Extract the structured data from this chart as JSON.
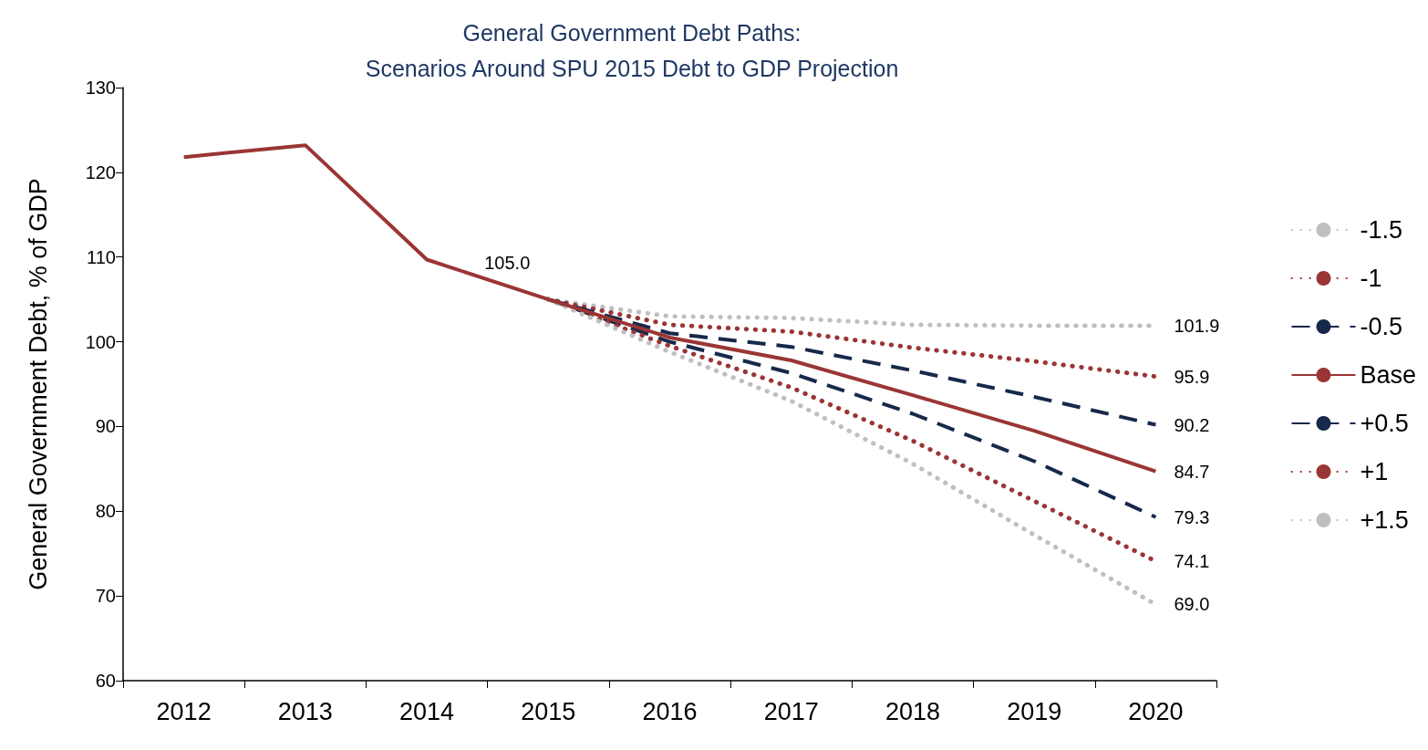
{
  "chart_data": {
    "type": "line",
    "title": "General Government Debt Paths:",
    "subtitle": "Scenarios Around SPU 2015 Debt to GDP Projection",
    "ylabel": "General Government Debt, % of GDP",
    "categories": [
      "2012",
      "2013",
      "2014",
      "2015",
      "2016",
      "2017",
      "2018",
      "2019",
      "2020"
    ],
    "series": [
      {
        "name": "-1.5",
        "color": "#bfbfbf",
        "line_style": "dotted",
        "values": [
          null,
          null,
          null,
          105.0,
          103.0,
          102.8,
          102.0,
          101.9,
          101.9
        ],
        "value_labels": [
          null,
          null,
          null,
          null,
          null,
          null,
          null,
          null,
          "101.9"
        ]
      },
      {
        "name": "-1",
        "color": "#9b3535",
        "line_style": "dotted",
        "values": [
          null,
          null,
          null,
          105.0,
          102.0,
          101.2,
          99.3,
          97.7,
          95.9
        ],
        "value_labels": [
          null,
          null,
          null,
          null,
          null,
          null,
          null,
          null,
          "95.9"
        ]
      },
      {
        "name": "-0.5",
        "color": "#17294a",
        "line_style": "dashed",
        "values": [
          null,
          null,
          null,
          105.0,
          101.0,
          99.4,
          96.6,
          93.5,
          90.2
        ],
        "value_labels": [
          null,
          null,
          null,
          null,
          null,
          null,
          null,
          null,
          "90.2"
        ]
      },
      {
        "name": "Base",
        "color": "#9b3535",
        "line_style": "solid",
        "values": [
          121.8,
          123.2,
          109.7,
          105.0,
          100.5,
          97.8,
          93.7,
          89.5,
          84.7
        ],
        "value_labels": [
          null,
          null,
          null,
          "105.0",
          null,
          null,
          null,
          null,
          "84.7"
        ]
      },
      {
        "name": "+0.5",
        "color": "#17294a",
        "line_style": "dashed",
        "values": [
          null,
          null,
          null,
          105.0,
          100.0,
          96.3,
          91.5,
          85.9,
          79.3
        ],
        "value_labels": [
          null,
          null,
          null,
          null,
          null,
          null,
          null,
          null,
          "79.3"
        ]
      },
      {
        "name": "+1",
        "color": "#9b3535",
        "line_style": "dotted",
        "values": [
          null,
          null,
          null,
          105.0,
          99.5,
          94.6,
          88.3,
          81.2,
          74.1
        ],
        "value_labels": [
          null,
          null,
          null,
          null,
          null,
          null,
          null,
          null,
          "74.1"
        ]
      },
      {
        "name": "+1.5",
        "color": "#bfbfbf",
        "line_style": "dotted",
        "values": [
          null,
          null,
          null,
          105.0,
          98.8,
          93.0,
          85.6,
          77.2,
          69.0
        ],
        "value_labels": [
          null,
          null,
          null,
          null,
          null,
          null,
          null,
          null,
          "69.0"
        ]
      }
    ],
    "ylim": [
      60,
      130
    ],
    "yticks": [
      60,
      70,
      80,
      90,
      100,
      110,
      120,
      130
    ],
    "grid": false,
    "legend": "right",
    "marker": "none"
  }
}
